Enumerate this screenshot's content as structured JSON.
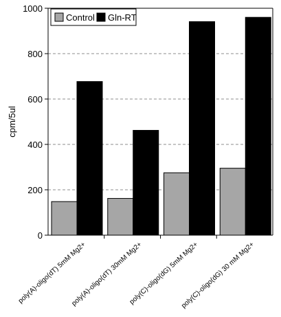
{
  "chart_data": {
    "type": "bar",
    "title": "",
    "xlabel": "",
    "ylabel": "cpm/5ul",
    "ylim": [
      0,
      1000
    ],
    "yticks": [
      0,
      200,
      400,
      600,
      800,
      1000
    ],
    "grid": true,
    "legend_position": "top-left",
    "categories": [
      "poly(A)-oligo(dT) 5mM Mg2+",
      "poly(A)-oligo(dT) 30mM Mg2+",
      "poly(C)-oligo(dG) 5mM Mg2+",
      "poly(C)-oligo(dG) 30 mM Mg2+"
    ],
    "series": [
      {
        "name": "Control",
        "color": "#a6a6a6",
        "values": [
          148,
          162,
          275,
          295
        ]
      },
      {
        "name": "Gln-RT",
        "color": "#000000",
        "values": [
          677,
          462,
          941,
          960
        ]
      }
    ]
  }
}
